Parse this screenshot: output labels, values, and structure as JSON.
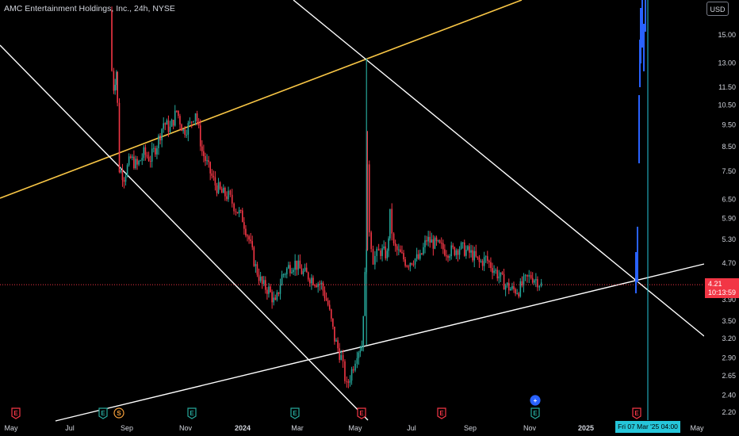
{
  "header": {
    "title": "AMC Entertainment Holdings, Inc., 24h, NYSE",
    "currency_button": "USD"
  },
  "price_label": {
    "price": "4.21",
    "countdown": "10:13:59"
  },
  "crosshair_date": "Fri 07 Mar '25  04:00",
  "colors": {
    "background": "#000000",
    "up_candle": "#26a69a",
    "down_candle": "#f23645",
    "trend_lines": "#ffffff",
    "yellow_line": "#f7c545",
    "blue_projection": "#2962ff",
    "crosshair": "#26c6da",
    "price_line": "#f23645"
  },
  "event_markers": [
    {
      "type": "earnings",
      "glyph": "E",
      "date": "Apr 2023",
      "color": "#f23645"
    },
    {
      "type": "earnings",
      "glyph": "E",
      "date": "Aug 2023",
      "color": "#26a69a"
    },
    {
      "type": "split",
      "glyph": "S",
      "date": "Aug 2023",
      "color": "#f7a03a"
    },
    {
      "type": "earnings",
      "glyph": "E",
      "date": "Nov 2023",
      "color": "#26a69a"
    },
    {
      "type": "earnings",
      "glyph": "E",
      "date": "Feb 2024",
      "color": "#26a69a"
    },
    {
      "type": "earnings",
      "glyph": "E",
      "date": "May 2024",
      "color": "#f23645"
    },
    {
      "type": "earnings",
      "glyph": "E",
      "date": "Aug 2024",
      "color": "#f23645"
    },
    {
      "type": "earnings",
      "glyph": "E",
      "date": "Nov 2024",
      "color": "#26a69a"
    },
    {
      "type": "earnings",
      "glyph": "E",
      "date": "Feb 2025",
      "color": "#f23645"
    },
    {
      "type": "add",
      "glyph": "+",
      "date": "Nov 2024",
      "color": "#2962ff"
    }
  ],
  "chart_data": {
    "type": "line",
    "symbol": "AMC",
    "timeframe": "24h",
    "y_scale": "log",
    "ylim": [
      2.1,
      17.5
    ],
    "y_ticks": [
      "15.00",
      "13.00",
      "11.50",
      "10.50",
      "9.50",
      "8.50",
      "7.50",
      "6.50",
      "5.90",
      "5.30",
      "4.70",
      "4.20",
      "3.90",
      "3.50",
      "3.20",
      "2.90",
      "2.65",
      "2.40",
      "2.20"
    ],
    "x_ticks": [
      "May",
      "Jul",
      "Sep",
      "Nov",
      "2024",
      "Mar",
      "May",
      "Jul",
      "Sep",
      "Nov",
      "2025",
      "Mar",
      "May"
    ],
    "series": [
      {
        "values": [
          {
            "x": "2023-08-14",
            "y": 17.0
          },
          {
            "x": "2023-08-16",
            "y": 12.5
          },
          {
            "x": "2023-08-18",
            "y": 11.5
          },
          {
            "x": "2023-08-21",
            "y": 12.5
          },
          {
            "x": "2023-08-22",
            "y": 10.5
          },
          {
            "x": "2023-08-24",
            "y": 7.6
          },
          {
            "x": "2023-08-29",
            "y": 7.3
          },
          {
            "x": "2023-09-05",
            "y": 8.0
          },
          {
            "x": "2023-09-12",
            "y": 7.7
          },
          {
            "x": "2023-09-19",
            "y": 8.2
          },
          {
            "x": "2023-09-26",
            "y": 8.0
          },
          {
            "x": "2023-10-03",
            "y": 8.6
          },
          {
            "x": "2023-10-10",
            "y": 9.6
          },
          {
            "x": "2023-10-17",
            "y": 9.3
          },
          {
            "x": "2023-10-24",
            "y": 10.2
          },
          {
            "x": "2023-10-31",
            "y": 9.2
          },
          {
            "x": "2023-11-07",
            "y": 9.5
          },
          {
            "x": "2023-11-13",
            "y": 10.2
          },
          {
            "x": "2023-11-20",
            "y": 8.3
          },
          {
            "x": "2023-11-27",
            "y": 7.6
          },
          {
            "x": "2023-12-04",
            "y": 7.0
          },
          {
            "x": "2023-12-11",
            "y": 6.7
          },
          {
            "x": "2023-12-18",
            "y": 6.6
          },
          {
            "x": "2023-12-26",
            "y": 6.2
          },
          {
            "x": "2024-01-02",
            "y": 5.9
          },
          {
            "x": "2024-01-09",
            "y": 5.3
          },
          {
            "x": "2024-01-16",
            "y": 4.6
          },
          {
            "x": "2024-01-23",
            "y": 4.2
          },
          {
            "x": "2024-01-30",
            "y": 4.1
          },
          {
            "x": "2024-02-06",
            "y": 3.8
          },
          {
            "x": "2024-02-13",
            "y": 4.4
          },
          {
            "x": "2024-02-20",
            "y": 4.6
          },
          {
            "x": "2024-02-27",
            "y": 4.7
          },
          {
            "x": "2024-03-05",
            "y": 4.5
          },
          {
            "x": "2024-03-12",
            "y": 4.4
          },
          {
            "x": "2024-03-19",
            "y": 4.3
          },
          {
            "x": "2024-03-26",
            "y": 4.2
          },
          {
            "x": "2024-04-02",
            "y": 3.8
          },
          {
            "x": "2024-04-09",
            "y": 3.2
          },
          {
            "x": "2024-04-16",
            "y": 2.9
          },
          {
            "x": "2024-04-22",
            "y": 2.5
          },
          {
            "x": "2024-04-29",
            "y": 2.8
          },
          {
            "x": "2024-05-03",
            "y": 3.0
          },
          {
            "x": "2024-05-08",
            "y": 3.1
          },
          {
            "x": "2024-05-13",
            "y": 5.2
          },
          {
            "x": "2024-05-14",
            "y": 7.5
          },
          {
            "x": "2024-05-16",
            "y": 5.6
          },
          {
            "x": "2024-05-20",
            "y": 4.8
          },
          {
            "x": "2024-05-28",
            "y": 5.0
          },
          {
            "x": "2024-06-04",
            "y": 4.9
          },
          {
            "x": "2024-06-07",
            "y": 6.0
          },
          {
            "x": "2024-06-11",
            "y": 5.1
          },
          {
            "x": "2024-06-18",
            "y": 4.9
          },
          {
            "x": "2024-06-25",
            "y": 4.7
          },
          {
            "x": "2024-07-02",
            "y": 4.8
          },
          {
            "x": "2024-07-09",
            "y": 4.8
          },
          {
            "x": "2024-07-16",
            "y": 5.3
          },
          {
            "x": "2024-07-23",
            "y": 5.2
          },
          {
            "x": "2024-07-30",
            "y": 5.1
          },
          {
            "x": "2024-08-06",
            "y": 5.0
          },
          {
            "x": "2024-08-13",
            "y": 5.0
          },
          {
            "x": "2024-08-20",
            "y": 5.1
          },
          {
            "x": "2024-08-27",
            "y": 5.0
          },
          {
            "x": "2024-09-03",
            "y": 4.9
          },
          {
            "x": "2024-09-10",
            "y": 4.7
          },
          {
            "x": "2024-09-17",
            "y": 4.8
          },
          {
            "x": "2024-09-24",
            "y": 4.6
          },
          {
            "x": "2024-10-01",
            "y": 4.4
          },
          {
            "x": "2024-10-08",
            "y": 4.2
          },
          {
            "x": "2024-10-15",
            "y": 4.1
          },
          {
            "x": "2024-10-22",
            "y": 4.1
          },
          {
            "x": "2024-10-29",
            "y": 4.3
          },
          {
            "x": "2024-11-04",
            "y": 4.4
          },
          {
            "x": "2024-11-11",
            "y": 4.3
          },
          {
            "x": "2024-11-15",
            "y": 4.21
          }
        ]
      }
    ]
  }
}
